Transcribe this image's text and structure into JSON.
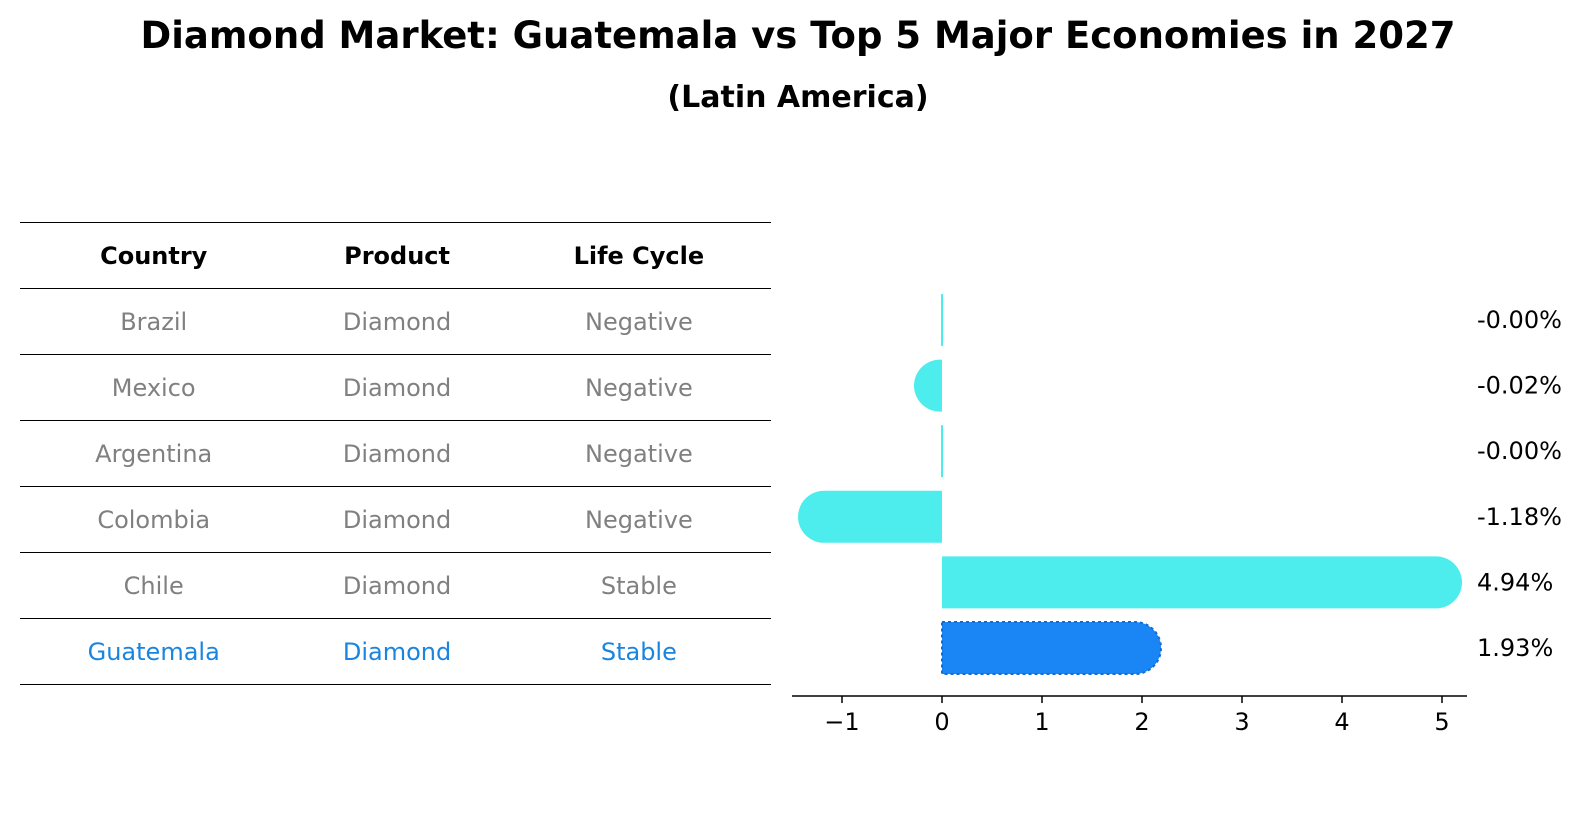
{
  "title": "Diamond Market: Guatemala vs Top 5 Major Economies in 2027",
  "subtitle": "(Latin America)",
  "table": {
    "headers": [
      "Country",
      "Product",
      "Life Cycle"
    ],
    "rows": [
      {
        "country": "Brazil",
        "product": "Diamond",
        "life_cycle": "Negative",
        "highlight": false
      },
      {
        "country": "Mexico",
        "product": "Diamond",
        "life_cycle": "Negative",
        "highlight": false
      },
      {
        "country": "Argentina",
        "product": "Diamond",
        "life_cycle": "Negative",
        "highlight": false
      },
      {
        "country": "Colombia",
        "product": "Diamond",
        "life_cycle": "Negative",
        "highlight": false
      },
      {
        "country": "Chile",
        "product": "Diamond",
        "life_cycle": "Stable",
        "highlight": false
      },
      {
        "country": "Guatemala",
        "product": "Diamond",
        "life_cycle": "Stable",
        "highlight": true
      }
    ]
  },
  "colors": {
    "bar": "#4deced",
    "highlight_bar": "#1a85f5",
    "muted_text": "#808080",
    "highlight_text": "#1a85e0"
  },
  "chart_data": {
    "type": "bar",
    "orientation": "horizontal",
    "categories": [
      "Brazil",
      "Mexico",
      "Argentina",
      "Colombia",
      "Chile",
      "Guatemala"
    ],
    "values": [
      -0.001,
      -0.02,
      -0.001,
      -1.18,
      4.94,
      1.93
    ],
    "data_labels": [
      "-0.00%",
      "-0.02%",
      "-0.00%",
      "-1.18%",
      "4.94%",
      "1.93%"
    ],
    "highlight_category": "Guatemala",
    "xlim": [
      -1.5,
      5.25
    ],
    "xticks": [
      -1,
      0,
      1,
      2,
      3,
      4,
      5
    ],
    "xtick_labels": [
      "−1",
      "0",
      "1",
      "2",
      "3",
      "4",
      "5"
    ],
    "title": "",
    "xlabel": "",
    "ylabel": "",
    "grid": false,
    "legend": false
  }
}
